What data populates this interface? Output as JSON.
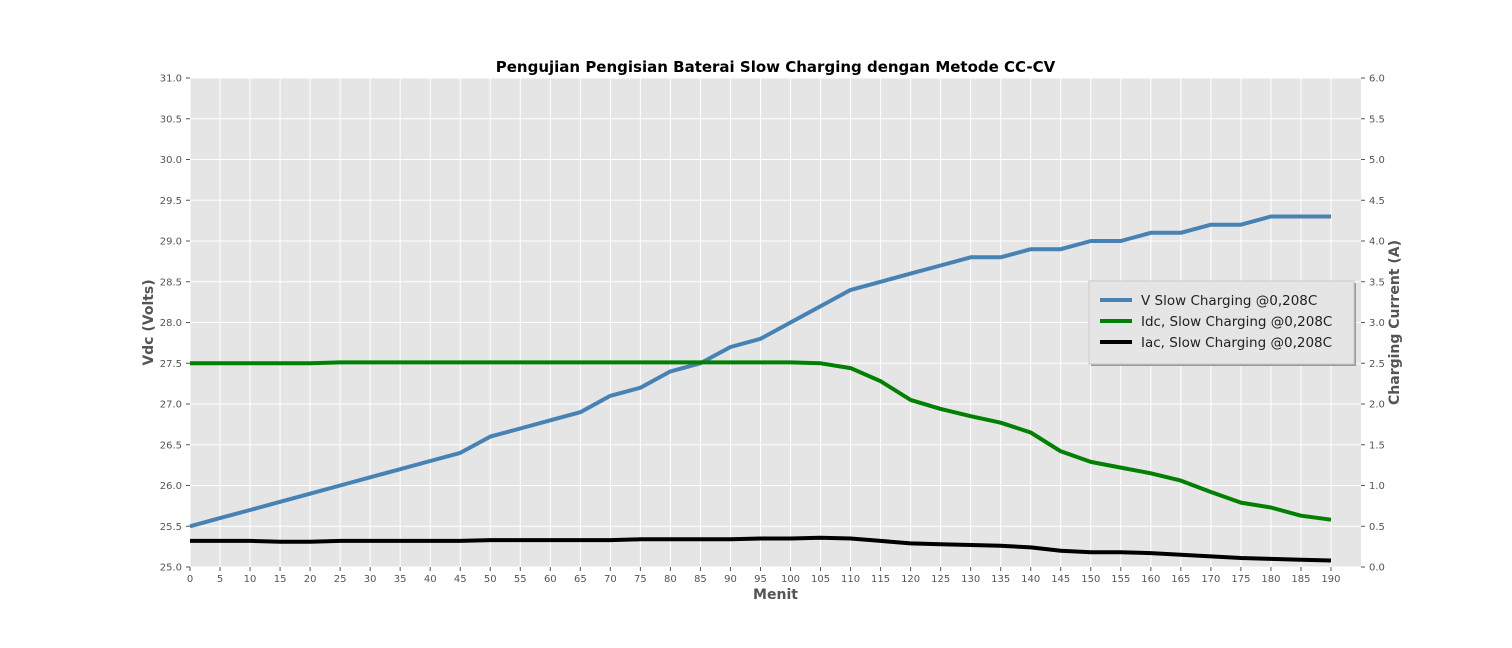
{
  "chart_data": {
    "type": "line",
    "title": "Pengujian Pengisian Baterai Slow Charging dengan Metode CC-CV",
    "xlabel": "Menit",
    "ylabel": "Vdc (Volts)",
    "y2label": "Charging Current (A)",
    "xlim": [
      0,
      195
    ],
    "ylim": [
      25.0,
      31.0
    ],
    "y2lim": [
      0.0,
      6.0
    ],
    "x_ticks": [
      0,
      5,
      10,
      15,
      20,
      25,
      30,
      35,
      40,
      45,
      50,
      55,
      60,
      65,
      70,
      75,
      80,
      85,
      90,
      95,
      100,
      105,
      110,
      115,
      120,
      125,
      130,
      135,
      140,
      145,
      150,
      155,
      160,
      165,
      170,
      175,
      180,
      185,
      190
    ],
    "y_ticks": [
      "25.0",
      "25.5",
      "26.0",
      "26.5",
      "27.0",
      "27.5",
      "28.0",
      "28.5",
      "29.0",
      "29.5",
      "30.0",
      "30.5",
      "31.0"
    ],
    "y2_ticks": [
      "0.0",
      "0.5",
      "1.0",
      "1.5",
      "2.0",
      "2.5",
      "3.0",
      "3.5",
      "4.0",
      "4.5",
      "5.0",
      "5.5",
      "6.0"
    ],
    "grid": true,
    "legend_position": "right",
    "x": [
      0,
      5,
      10,
      15,
      20,
      25,
      30,
      35,
      40,
      45,
      50,
      55,
      60,
      65,
      70,
      75,
      80,
      85,
      90,
      95,
      100,
      105,
      110,
      115,
      120,
      125,
      130,
      135,
      140,
      145,
      150,
      155,
      160,
      165,
      170,
      175,
      180,
      185,
      190
    ],
    "series": [
      {
        "name": "V Slow Charging @0,208C",
        "axis": "left",
        "color": "#4682b4",
        "values": [
          25.5,
          25.6,
          25.7,
          25.8,
          25.9,
          26.0,
          26.1,
          26.2,
          26.3,
          26.4,
          26.6,
          26.7,
          26.8,
          26.9,
          27.1,
          27.2,
          27.4,
          27.5,
          27.7,
          27.8,
          28.0,
          28.2,
          28.4,
          28.5,
          28.6,
          28.7,
          28.8,
          28.8,
          28.9,
          28.9,
          29.0,
          29.0,
          29.1,
          29.1,
          29.2,
          29.2,
          29.3,
          29.3,
          29.3
        ]
      },
      {
        "name": "Idc, Slow Charging @0,208C",
        "axis": "right",
        "color": "#008000",
        "values": [
          2.5,
          2.5,
          2.5,
          2.5,
          2.5,
          2.51,
          2.51,
          2.51,
          2.51,
          2.51,
          2.51,
          2.51,
          2.51,
          2.51,
          2.51,
          2.51,
          2.51,
          2.51,
          2.51,
          2.51,
          2.51,
          2.5,
          2.44,
          2.28,
          2.05,
          1.94,
          1.85,
          1.77,
          1.65,
          1.42,
          1.29,
          1.22,
          1.15,
          1.06,
          0.92,
          0.79,
          0.73,
          0.63,
          0.58
        ]
      },
      {
        "name": "Iac, Slow Charging @0,208C",
        "axis": "right",
        "color": "#000000",
        "values": [
          0.32,
          0.32,
          0.32,
          0.31,
          0.31,
          0.32,
          0.32,
          0.32,
          0.32,
          0.32,
          0.33,
          0.33,
          0.33,
          0.33,
          0.33,
          0.34,
          0.34,
          0.34,
          0.34,
          0.35,
          0.35,
          0.36,
          0.35,
          0.32,
          0.29,
          0.28,
          0.27,
          0.26,
          0.24,
          0.2,
          0.18,
          0.18,
          0.17,
          0.15,
          0.13,
          0.11,
          0.1,
          0.09,
          0.08
        ]
      }
    ]
  }
}
